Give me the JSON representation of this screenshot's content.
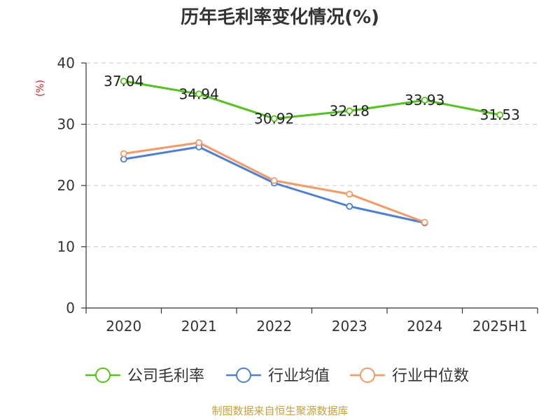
{
  "chart_data": {
    "type": "line",
    "title": "历年毛利率变化情况(%)",
    "ylabel": "(%)",
    "xlabel": "",
    "categories": [
      "2020",
      "2021",
      "2022",
      "2023",
      "2024",
      "2025H1"
    ],
    "ylim": [
      0,
      40
    ],
    "yticks": [
      0,
      10,
      20,
      30,
      40
    ],
    "grid": true,
    "legend_position": "bottom",
    "series": [
      {
        "name": "公司毛利率",
        "color": "#52c41a",
        "values": [
          37.04,
          34.94,
          30.92,
          32.18,
          33.93,
          31.53
        ],
        "labels": [
          "37.04",
          "34.94",
          "30.92",
          "32.18",
          "33.93",
          "31.53"
        ]
      },
      {
        "name": "行业均值",
        "color": "#4a7fdc",
        "values": [
          24.3,
          26.3,
          20.4,
          16.6,
          13.9,
          null
        ]
      },
      {
        "name": "行业中位数",
        "color": "#f59a64",
        "values": [
          25.2,
          27.0,
          20.8,
          18.6,
          14.0,
          null
        ]
      }
    ]
  },
  "source": "制图数据来自恒生聚源数据库"
}
